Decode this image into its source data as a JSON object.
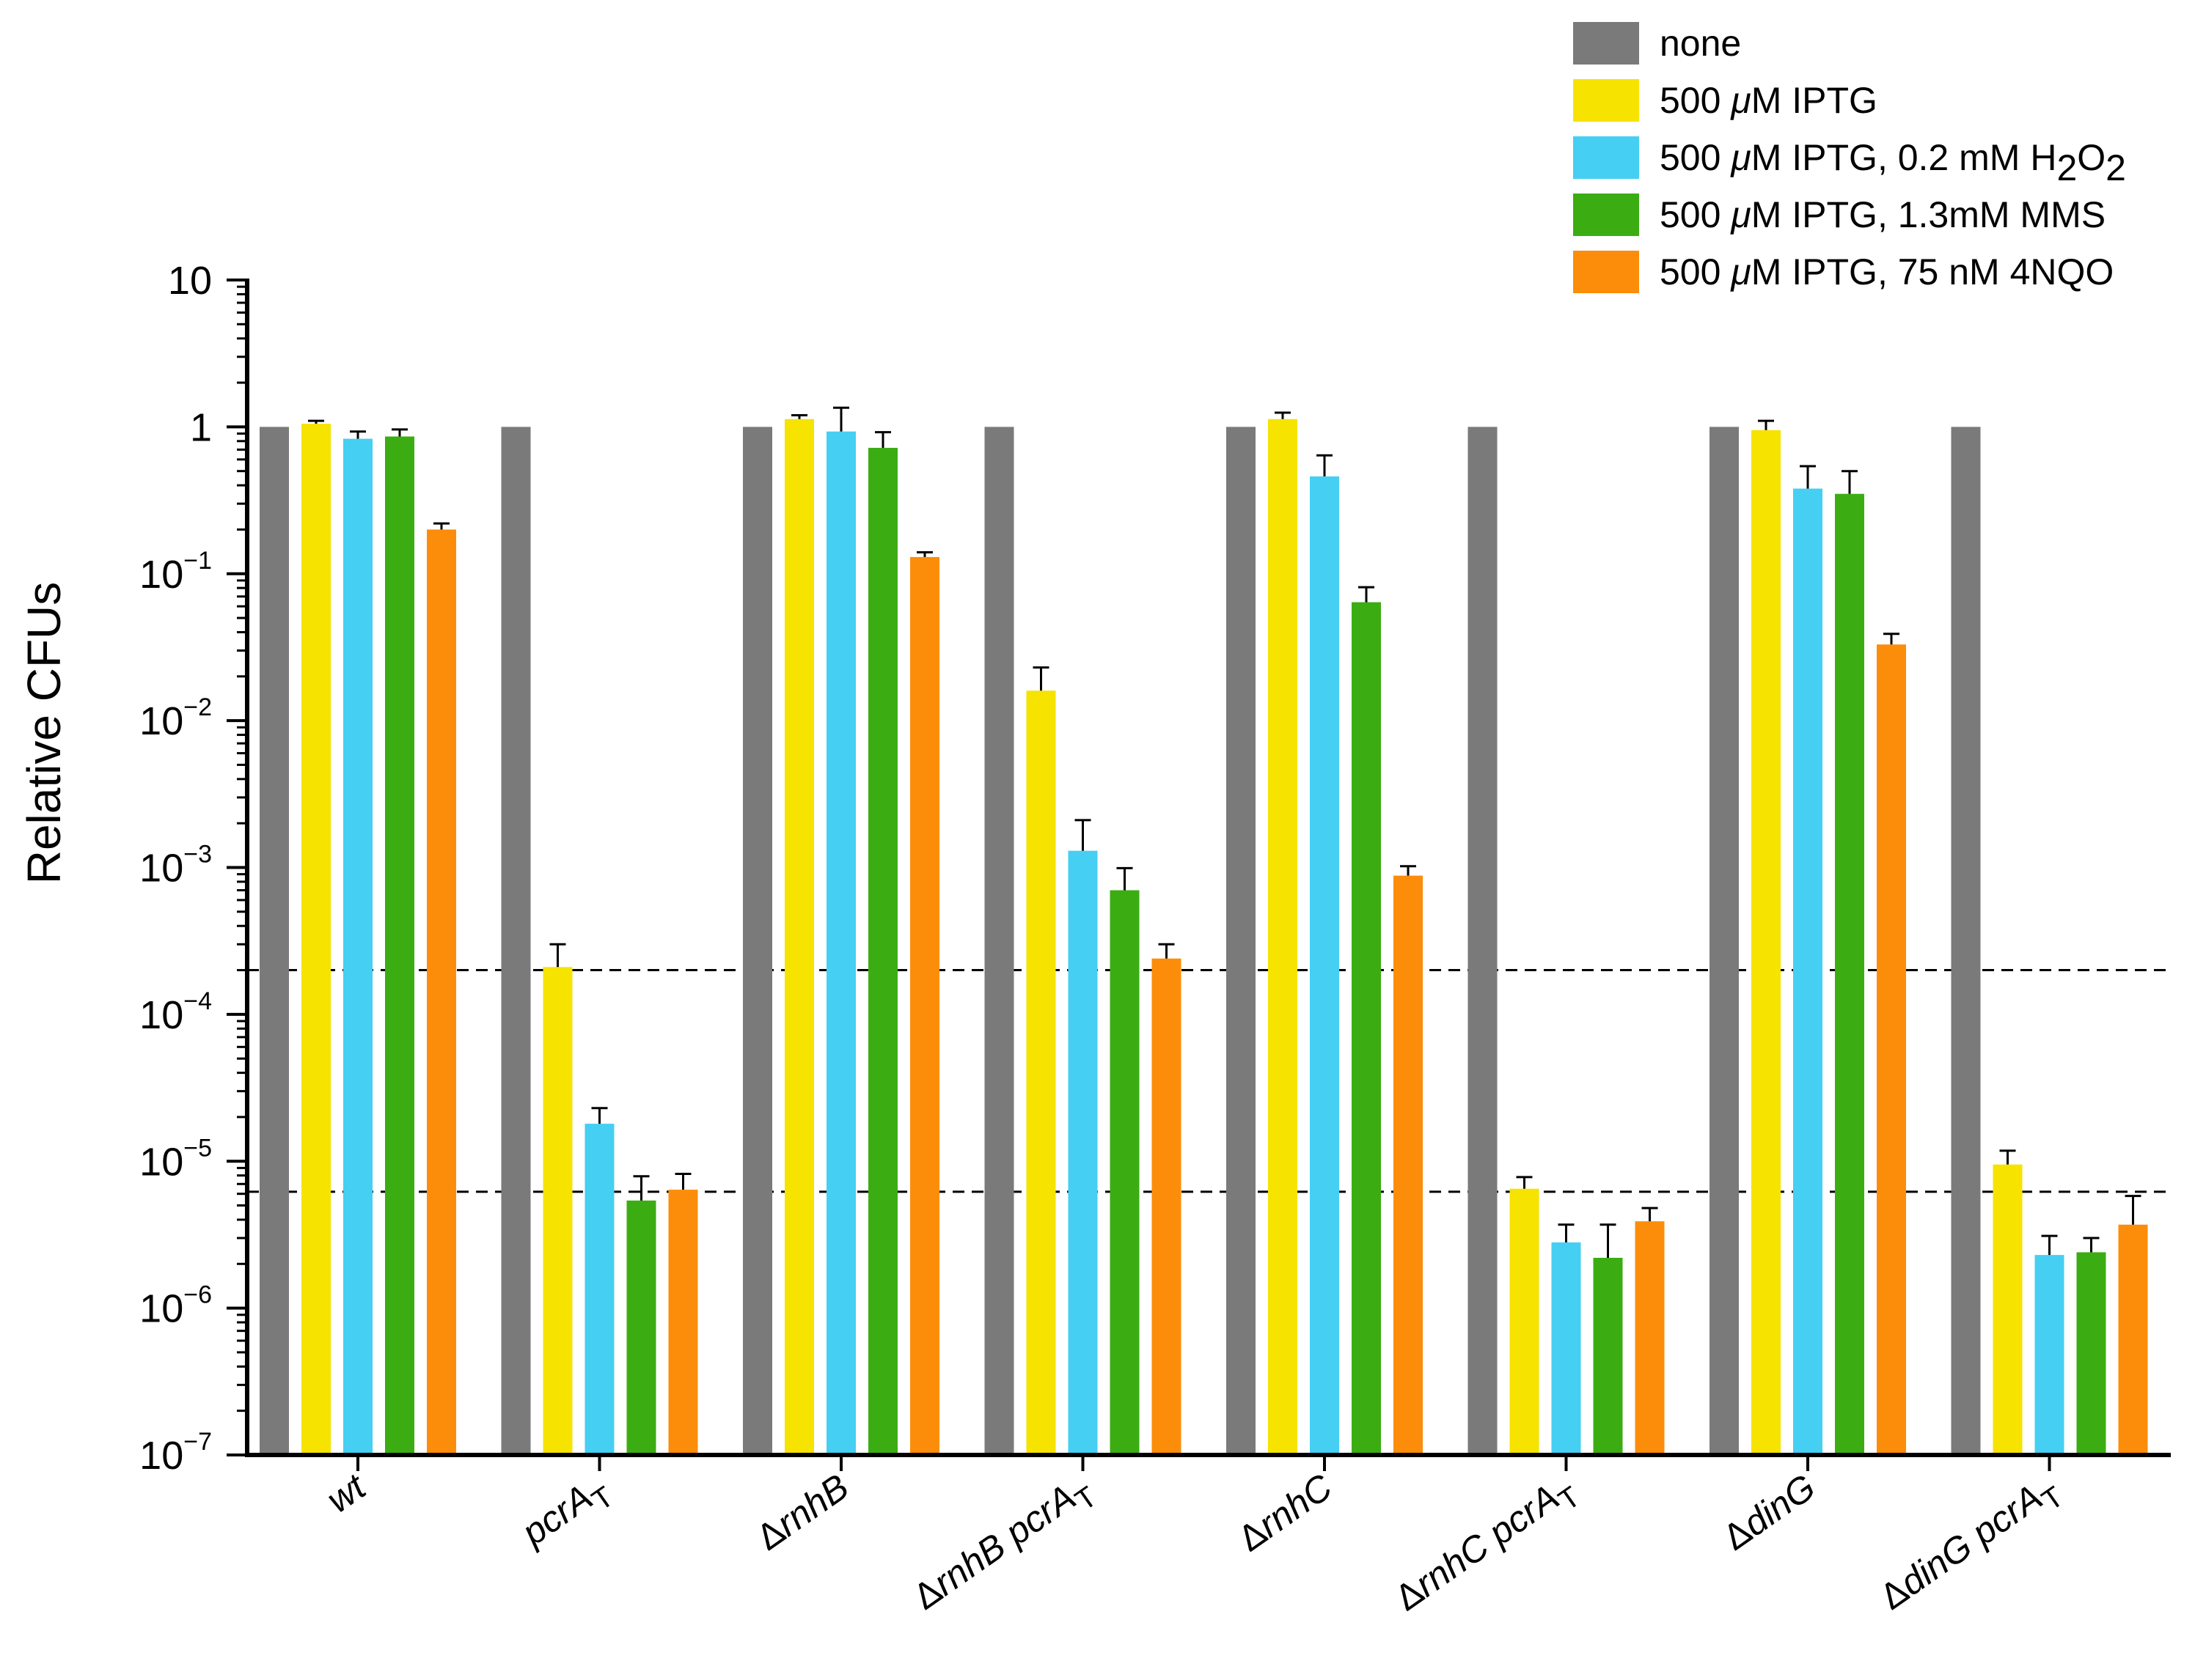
{
  "chart_data": {
    "type": "bar",
    "title": "",
    "xlabel": "",
    "ylabel": "Relative CFUs",
    "yscale": "log",
    "ylim": [
      1e-07,
      10
    ],
    "yticks": [
      {
        "base": "10",
        "exp": "",
        "value": 10
      },
      {
        "base": "1",
        "exp": "",
        "value": 1
      },
      {
        "base": "10",
        "exp": "−1",
        "value": 0.1
      },
      {
        "base": "10",
        "exp": "−2",
        "value": 0.01
      },
      {
        "base": "10",
        "exp": "−3",
        "value": 0.001
      },
      {
        "base": "10",
        "exp": "−4",
        "value": 0.0001
      },
      {
        "base": "10",
        "exp": "−5",
        "value": 1e-05
      },
      {
        "base": "10",
        "exp": "−6",
        "value": 1e-06
      },
      {
        "base": "10",
        "exp": "−7",
        "value": 1e-07
      }
    ],
    "categories": [
      {
        "parts": [
          {
            "t": "wt"
          }
        ]
      },
      {
        "parts": [
          {
            "t": "pcrA"
          },
          {
            "t": "T",
            "sub": true
          }
        ]
      },
      {
        "parts": [
          {
            "t": "Δ",
            "up": true
          },
          {
            "t": "rnhB"
          }
        ]
      },
      {
        "parts": [
          {
            "t": "Δ",
            "up": true
          },
          {
            "t": "rnhB pcrA"
          },
          {
            "t": "T",
            "sub": true
          }
        ]
      },
      {
        "parts": [
          {
            "t": "Δ",
            "up": true
          },
          {
            "t": "rnhC"
          }
        ]
      },
      {
        "parts": [
          {
            "t": "Δ",
            "up": true
          },
          {
            "t": "rnhC pcrA"
          },
          {
            "t": "T",
            "sub": true
          }
        ]
      },
      {
        "parts": [
          {
            "t": "Δ",
            "up": true
          },
          {
            "t": "dinG"
          }
        ]
      },
      {
        "parts": [
          {
            "t": "Δ",
            "up": true
          },
          {
            "t": "dinG pcrA"
          },
          {
            "t": "T",
            "sub": true
          }
        ]
      }
    ],
    "series": [
      {
        "name": "none",
        "color": "#7a7a7a",
        "legend": [
          {
            "t": "none"
          }
        ],
        "values": [
          1,
          1,
          1,
          1,
          1,
          1,
          1,
          1
        ],
        "errors": [
          null,
          null,
          null,
          null,
          null,
          null,
          null,
          null
        ]
      },
      {
        "name": "500 μM IPTG",
        "color": "#f6e300",
        "legend": [
          {
            "t": "500 "
          },
          {
            "t": "μ",
            "i": true
          },
          {
            "t": "M IPTG"
          }
        ],
        "values": [
          1.05,
          0.00021,
          1.13,
          0.016,
          1.13,
          6.5e-06,
          0.95,
          9.5e-06
        ],
        "errors": [
          1.1,
          0.0003,
          1.2,
          0.023,
          1.25,
          7.8e-06,
          1.1,
          1.18e-05
        ]
      },
      {
        "name": "500 μM IPTG, 0.2 mM H2O2",
        "color": "#45cff2",
        "legend": [
          {
            "t": "500 "
          },
          {
            "t": "μ",
            "i": true
          },
          {
            "t": "M IPTG, 0.2 mM H"
          },
          {
            "t": "2",
            "sub": true
          },
          {
            "t": "O"
          },
          {
            "t": "2",
            "sub": true
          }
        ],
        "values": [
          0.83,
          1.8e-05,
          0.93,
          0.0013,
          0.46,
          2.8e-06,
          0.38,
          2.3e-06
        ],
        "errors": [
          0.93,
          2.3e-05,
          1.35,
          0.0021,
          0.64,
          3.7e-06,
          0.54,
          3.1e-06
        ]
      },
      {
        "name": "500 μM IPTG, 1.3mM MMS",
        "color": "#3bad12",
        "legend": [
          {
            "t": "500 "
          },
          {
            "t": "μ",
            "i": true
          },
          {
            "t": "M IPTG, 1.3mM MMS"
          }
        ],
        "values": [
          0.86,
          5.4e-06,
          0.72,
          0.0007,
          0.064,
          2.2e-06,
          0.35,
          2.4e-06
        ],
        "errors": [
          0.96,
          7.9e-06,
          0.92,
          0.00099,
          0.081,
          3.7e-06,
          0.5,
          3e-06
        ]
      },
      {
        "name": "500 μM IPTG, 75 nM 4NQO",
        "color": "#fc8d0a",
        "legend": [
          {
            "t": "500 "
          },
          {
            "t": "μ",
            "i": true
          },
          {
            "t": "M IPTG, 75 nM 4NQO"
          }
        ],
        "values": [
          0.2,
          6.4e-06,
          0.13,
          0.00024,
          0.00088,
          3.9e-06,
          0.033,
          3.7e-06
        ],
        "errors": [
          0.22,
          8.2e-06,
          0.14,
          0.0003,
          0.00102,
          4.8e-06,
          0.039,
          5.8e-06
        ]
      }
    ],
    "reference_lines": [
      0.0002,
      6.2e-06
    ],
    "legend_position": "top-right"
  }
}
